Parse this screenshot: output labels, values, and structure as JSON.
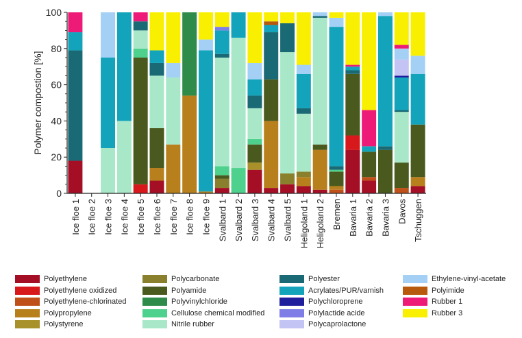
{
  "chart_data": {
    "type": "bar",
    "stacked": true,
    "ylabel": "Polymer compostion [%]",
    "xlabel": "",
    "ylim": [
      0,
      100
    ],
    "yticks": [
      0,
      20,
      40,
      60,
      80,
      100
    ],
    "grid": false,
    "legend_position": "bottom",
    "categories": [
      "Ice floe 1",
      "Ice floe 2",
      "Ice floe 3",
      "Ice floe 4",
      "Ice floe 5",
      "Ice floe 6",
      "Ice floe 7",
      "Ice floe 8",
      "Ice floe 9",
      "Svalbard 1",
      "Svalbard 2",
      "Svalbard 3",
      "Svalbard 4",
      "Svalbard 5",
      "Heligoland 1",
      "Heligoland 2",
      "Bremen",
      "Bavaria 1",
      "Bavaria 2",
      "Bavaria 3",
      "Davos",
      "Tschuggen"
    ],
    "series": [
      {
        "name": "Polyethylene",
        "color": "#a50f26",
        "values": [
          18,
          0,
          0,
          0,
          0,
          7,
          0,
          0,
          0,
          3,
          0,
          13,
          3,
          5,
          4,
          2,
          0,
          24,
          7,
          0,
          0,
          4
        ]
      },
      {
        "name": "Polyethylene oxidized",
        "color": "#d7191c",
        "values": [
          0,
          0,
          0,
          0,
          5,
          0,
          0,
          0,
          0,
          0,
          0,
          0,
          0,
          0,
          0,
          0,
          0,
          8,
          0,
          0,
          0,
          0
        ]
      },
      {
        "name": "Polyethylene-chlorinated",
        "color": "#c0501a",
        "values": [
          0,
          0,
          0,
          0,
          0,
          0,
          0,
          0,
          0,
          0,
          0,
          0,
          0,
          0,
          0,
          0,
          2,
          0,
          2,
          0,
          3,
          0
        ]
      },
      {
        "name": "Polypropylene",
        "color": "#b8801c",
        "values": [
          0,
          0,
          0,
          0,
          0,
          7,
          27,
          54,
          1,
          0,
          0,
          0,
          37,
          0,
          5,
          22,
          2,
          0,
          0,
          0,
          0,
          5
        ]
      },
      {
        "name": "Polystyrene",
        "color": "#a8902a",
        "values": [
          0,
          0,
          0,
          0,
          0,
          0,
          0,
          0,
          0,
          0,
          0,
          4,
          0,
          0,
          0,
          0,
          0,
          0,
          0,
          0,
          0,
          0
        ]
      },
      {
        "name": "Polycarbonate",
        "color": "#8a7f2c",
        "values": [
          0,
          0,
          0,
          0,
          0,
          0,
          0,
          0,
          0,
          5,
          0,
          0,
          0,
          6,
          3,
          0,
          0,
          0,
          0,
          0,
          0,
          0
        ]
      },
      {
        "name": "Polyamide",
        "color": "#4a5a1e",
        "values": [
          0,
          0,
          0,
          0,
          70,
          22,
          0,
          0,
          0,
          2,
          0,
          10,
          23,
          0,
          0,
          3,
          8,
          34,
          14,
          24,
          14,
          29
        ]
      },
      {
        "name": "Polyvinylchloride",
        "color": "#2e8b4a",
        "values": [
          0,
          0,
          0,
          0,
          0,
          0,
          0,
          46,
          0,
          0,
          0,
          0,
          0,
          0,
          0,
          0,
          0,
          0,
          0,
          0,
          0,
          0
        ]
      },
      {
        "name": "Cellulose chemical modified",
        "color": "#4ed18c",
        "values": [
          0,
          0,
          0,
          0,
          5,
          0,
          0,
          0,
          0,
          5,
          14,
          3,
          0,
          0,
          0,
          0,
          1,
          0,
          0,
          0,
          0,
          0
        ]
      },
      {
        "name": "Nitrile rubber",
        "color": "#a8e8c8",
        "values": [
          0,
          0,
          25,
          40,
          10,
          29,
          37,
          0,
          0,
          60,
          72,
          17,
          0,
          67,
          32,
          70,
          0,
          0,
          0,
          0,
          28,
          0
        ]
      },
      {
        "name": "Polyester",
        "color": "#1a6a75",
        "values": [
          61,
          0,
          0,
          0,
          5,
          7,
          0,
          0,
          0,
          2,
          0,
          7,
          26,
          16,
          3,
          1,
          2,
          2,
          0,
          2,
          1,
          0
        ]
      },
      {
        "name": "Acrylates/PUR/varnish",
        "color": "#13a4bb",
        "values": [
          10,
          0,
          50,
          60,
          0,
          7,
          0,
          0,
          78,
          13,
          14,
          9,
          4,
          0,
          19,
          0,
          77,
          2,
          3,
          72,
          18,
          28
        ]
      },
      {
        "name": "Polychloroprene",
        "color": "#1f1f9e",
        "values": [
          0,
          0,
          0,
          0,
          0,
          0,
          0,
          0,
          0,
          0,
          0,
          0,
          0,
          0,
          0,
          0,
          0,
          0,
          0,
          0,
          1,
          0
        ]
      },
      {
        "name": "Polylactide acide",
        "color": "#7e7ee6",
        "values": [
          0,
          0,
          0,
          0,
          0,
          0,
          0,
          0,
          0,
          2,
          0,
          0,
          0,
          0,
          0,
          0,
          0,
          0,
          0,
          0,
          0,
          0
        ]
      },
      {
        "name": "Polycaprolactone",
        "color": "#c4c4f4",
        "values": [
          0,
          0,
          0,
          0,
          0,
          0,
          0,
          0,
          0,
          0,
          0,
          0,
          0,
          0,
          0,
          0,
          0,
          0,
          0,
          0,
          9,
          0
        ]
      },
      {
        "name": "Ethylene-vinyl-acetate",
        "color": "#a4d0f6",
        "values": [
          0,
          0,
          25,
          0,
          0,
          0,
          8,
          0,
          6,
          0,
          0,
          9,
          0,
          0,
          5,
          2,
          5,
          0,
          0,
          2,
          6,
          10
        ]
      },
      {
        "name": "Polyimide",
        "color": "#b85a0e",
        "values": [
          0,
          0,
          0,
          0,
          0,
          0,
          0,
          0,
          0,
          0,
          0,
          0,
          2,
          0,
          0,
          0,
          0,
          0,
          0,
          0,
          0,
          0
        ]
      },
      {
        "name": "Rubber 1",
        "color": "#ee1a78",
        "values": [
          11,
          0,
          0,
          0,
          5,
          0,
          0,
          0,
          0,
          0,
          0,
          0,
          0,
          0,
          0,
          0,
          0,
          1,
          20,
          0,
          2,
          0
        ]
      },
      {
        "name": "Rubber 3",
        "color": "#f8f000",
        "values": [
          0,
          0,
          0,
          0,
          0,
          21,
          28,
          0,
          15,
          8,
          0,
          28,
          5,
          6,
          29,
          0,
          3,
          29,
          54,
          0,
          18,
          24
        ]
      }
    ]
  },
  "legend": {
    "items": [
      {
        "label": "Polyethylene",
        "color": "#a50f26"
      },
      {
        "label": "Polyethylene oxidized",
        "color": "#d7191c"
      },
      {
        "label": "Polyethylene-chlorinated",
        "color": "#c0501a"
      },
      {
        "label": "Polypropylene",
        "color": "#b8801c"
      },
      {
        "label": "Polystyrene",
        "color": "#a8902a"
      },
      {
        "label": "Polycarbonate",
        "color": "#8a7f2c"
      },
      {
        "label": "Polyamide",
        "color": "#4a5a1e"
      },
      {
        "label": "Polyvinylchloride",
        "color": "#2e8b4a"
      },
      {
        "label": "Cellulose chemical modified",
        "color": "#4ed18c"
      },
      {
        "label": "Nitrile rubber",
        "color": "#a8e8c8"
      },
      {
        "label": "Polyester",
        "color": "#1a6a75"
      },
      {
        "label": "Acrylates/PUR/varnish",
        "color": "#13a4bb"
      },
      {
        "label": "Polychloroprene",
        "color": "#1f1f9e"
      },
      {
        "label": "Polylactide acide",
        "color": "#7e7ee6"
      },
      {
        "label": "Polycaprolactone",
        "color": "#c4c4f4"
      },
      {
        "label": "Ethylene-vinyl-acetate",
        "color": "#a4d0f6"
      },
      {
        "label": "Polyimide",
        "color": "#b85a0e"
      },
      {
        "label": "Rubber 1",
        "color": "#ee1a78"
      },
      {
        "label": "Rubber 3",
        "color": "#f8f000"
      }
    ]
  }
}
